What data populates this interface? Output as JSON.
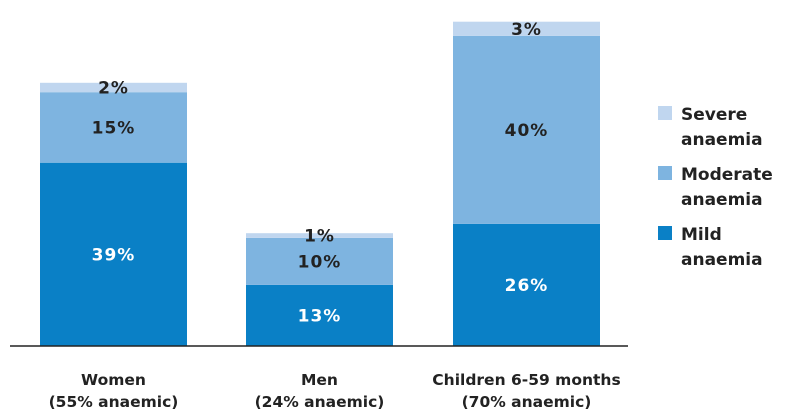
{
  "chart_data": {
    "type": "bar",
    "stacked": true,
    "categories": [
      "Women",
      "Men",
      "Children 6-59 months"
    ],
    "category_sublabels": [
      "(55% anaemic)",
      "(24% anaemic)",
      "(70% anaemic)"
    ],
    "series": [
      {
        "name": "Mild anaemia",
        "values": [
          39,
          13,
          26
        ],
        "color": "#0a80c6",
        "label_color": "#ffffff"
      },
      {
        "name": "Moderate anaemia",
        "values": [
          15,
          10,
          40
        ],
        "color": "#7eb4e0",
        "label_color": "#222222"
      },
      {
        "name": "Severe anaemia",
        "values": [
          2,
          1,
          3
        ],
        "color": "#c0d6ef",
        "label_color": "#222222"
      }
    ],
    "value_suffix": "%",
    "ylim": [
      0,
      70
    ],
    "grid": false,
    "legend_position": "right",
    "title": "",
    "xlabel": "",
    "ylabel": ""
  },
  "legend": {
    "items": [
      {
        "label": "Severe anaemia",
        "color": "#c0d6ef"
      },
      {
        "label": "Moderate anaemia",
        "color": "#7eb4e0"
      },
      {
        "label": "Mild anaemia",
        "color": "#0a80c6"
      }
    ]
  }
}
